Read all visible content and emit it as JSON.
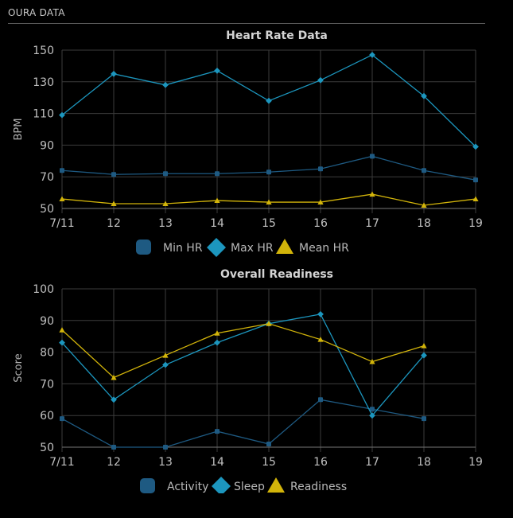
{
  "header": {
    "title": "OURA DATA"
  },
  "chart_data": [
    {
      "type": "line",
      "title": "Heart Rate Data",
      "xlabel": "",
      "ylabel": "BPM",
      "categories": [
        "7/11",
        "12",
        "13",
        "14",
        "15",
        "16",
        "17",
        "18",
        "19"
      ],
      "ylim": [
        50,
        150
      ],
      "yticks": [
        50,
        70,
        90,
        110,
        130,
        150
      ],
      "grid": true,
      "legend_position": "bottom",
      "series": [
        {
          "name": "Min HR",
          "marker": "square",
          "color": "#1e5a82",
          "values": [
            74,
            71.5,
            72,
            72,
            73,
            75,
            83,
            74,
            68
          ]
        },
        {
          "name": "Max HR",
          "marker": "diamond",
          "color": "#1c96be",
          "values": [
            109,
            135,
            128,
            137,
            118,
            131,
            147,
            121,
            89
          ]
        },
        {
          "name": "Mean HR",
          "marker": "triangle",
          "color": "#d2b40a",
          "values": [
            56,
            53,
            53,
            55,
            54,
            54,
            59,
            52,
            56
          ]
        }
      ]
    },
    {
      "type": "line",
      "title": "Overall Readiness",
      "xlabel": "",
      "ylabel": "Score",
      "categories": [
        "7/11",
        "12",
        "13",
        "14",
        "15",
        "16",
        "17",
        "18",
        "19"
      ],
      "ylim": [
        50,
        100
      ],
      "yticks": [
        50,
        60,
        70,
        80,
        90,
        100
      ],
      "grid": true,
      "legend_position": "bottom",
      "series": [
        {
          "name": "Activity",
          "marker": "square",
          "color": "#1e5a82",
          "values": [
            59,
            50,
            50,
            55,
            51,
            65,
            62,
            59,
            null
          ]
        },
        {
          "name": "Sleep",
          "marker": "diamond",
          "color": "#1c96be",
          "values": [
            83,
            65,
            76,
            83,
            89,
            92,
            60,
            79,
            null
          ]
        },
        {
          "name": "Readiness",
          "marker": "triangle",
          "color": "#d2b40a",
          "values": [
            87,
            72,
            79,
            86,
            89,
            84,
            77,
            82,
            null
          ]
        }
      ]
    }
  ]
}
